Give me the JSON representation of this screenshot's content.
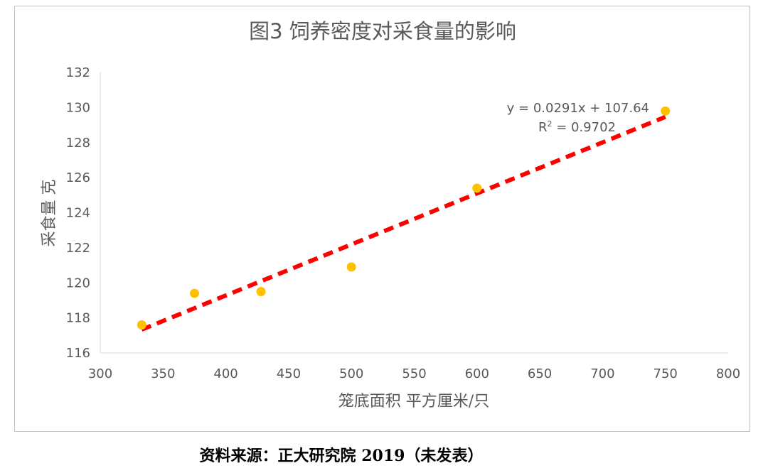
{
  "chart_data": {
    "type": "scatter",
    "title": "图3 饲养密度对采食量的影响",
    "xlabel": "笼底面积 平方厘米/只",
    "ylabel": "采食量 克",
    "xlim": [
      300,
      800
    ],
    "ylim": [
      116,
      132
    ],
    "x_ticks": [
      300,
      350,
      400,
      450,
      500,
      550,
      600,
      650,
      700,
      750,
      800
    ],
    "y_ticks": [
      116,
      118,
      120,
      122,
      124,
      126,
      128,
      130,
      132
    ],
    "series": [
      {
        "name": "采食量",
        "x": [
          333,
          375,
          428,
          500,
          600,
          750
        ],
        "y": [
          117.6,
          119.4,
          119.5,
          120.9,
          125.4,
          129.8
        ],
        "color": "#FFC000"
      }
    ],
    "trendline": {
      "type": "linear",
      "slope": 0.0291,
      "intercept": 107.64,
      "x_range": [
        333,
        750
      ],
      "color": "#FF0000",
      "style": "dashed",
      "equation_label": "y = 0.0291x + 107.64",
      "r2_label_prefix": "R",
      "r2_label_sup": "2",
      "r2_label_suffix": " = 0.9702"
    },
    "grid": false,
    "legend": "none"
  },
  "source_note": "资料来源：正大研究院 2019（未发表）"
}
